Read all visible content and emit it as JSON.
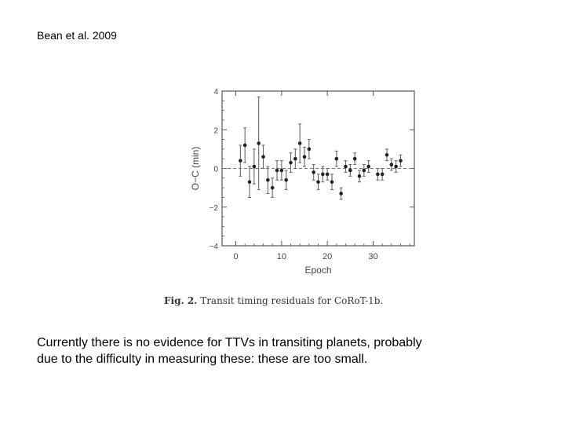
{
  "header": {
    "citation": "Bean et al. 2009"
  },
  "caption": {
    "label": "Fig. 2.",
    "text": "Transit timing residuals for CoRoT-1b."
  },
  "body": {
    "line1": "Currently there is no evidence for TTVs in transiting planets, probably",
    "line2": "due to the difficulty in measuring these: these are too small."
  },
  "chart_data": {
    "type": "scatter",
    "title": "",
    "xlabel": "Epoch",
    "ylabel": "O−C (min)",
    "xlim": [
      -3,
      39
    ],
    "ylim": [
      -4,
      4
    ],
    "xticks": [
      0,
      10,
      20,
      30
    ],
    "yticks": [
      -4,
      -2,
      0,
      2,
      4
    ],
    "ytick_labels": [
      "−4",
      "−2",
      "0",
      "2",
      "4"
    ],
    "zero_line": "dashed",
    "grid": false,
    "points": [
      {
        "x": 1,
        "y": 0.4,
        "err": 0.8
      },
      {
        "x": 2,
        "y": 1.2,
        "err": 0.9
      },
      {
        "x": 3,
        "y": -0.7,
        "err": 0.8
      },
      {
        "x": 4,
        "y": 0.1,
        "err": 0.9
      },
      {
        "x": 5,
        "y": 1.3,
        "err": 2.4
      },
      {
        "x": 6,
        "y": 0.6,
        "err": 0.6
      },
      {
        "x": 7,
        "y": -0.6,
        "err": 0.7
      },
      {
        "x": 8,
        "y": -1.0,
        "err": 0.5
      },
      {
        "x": 9,
        "y": -0.1,
        "err": 0.5
      },
      {
        "x": 10,
        "y": -0.1,
        "err": 0.5
      },
      {
        "x": 11,
        "y": -0.6,
        "err": 0.5
      },
      {
        "x": 12,
        "y": 0.3,
        "err": 0.5
      },
      {
        "x": 13,
        "y": 0.5,
        "err": 0.5
      },
      {
        "x": 14,
        "y": 1.3,
        "err": 1.0
      },
      {
        "x": 15,
        "y": 0.6,
        "err": 0.5
      },
      {
        "x": 16,
        "y": 1.0,
        "err": 0.5
      },
      {
        "x": 17,
        "y": -0.2,
        "err": 0.4
      },
      {
        "x": 18,
        "y": -0.7,
        "err": 0.4
      },
      {
        "x": 19,
        "y": -0.3,
        "err": 0.4
      },
      {
        "x": 20,
        "y": -0.3,
        "err": 0.3
      },
      {
        "x": 21,
        "y": -0.7,
        "err": 0.4
      },
      {
        "x": 22,
        "y": 0.5,
        "err": 0.4
      },
      {
        "x": 23,
        "y": -1.3,
        "err": 0.3
      },
      {
        "x": 24,
        "y": 0.1,
        "err": 0.3
      },
      {
        "x": 25,
        "y": -0.1,
        "err": 0.3
      },
      {
        "x": 26,
        "y": 0.5,
        "err": 0.3
      },
      {
        "x": 27,
        "y": -0.4,
        "err": 0.3
      },
      {
        "x": 28,
        "y": -0.1,
        "err": 0.3
      },
      {
        "x": 29,
        "y": 0.1,
        "err": 0.3
      },
      {
        "x": 31,
        "y": -0.3,
        "err": 0.3
      },
      {
        "x": 32,
        "y": -0.3,
        "err": 0.3
      },
      {
        "x": 33,
        "y": 0.7,
        "err": 0.3
      },
      {
        "x": 34,
        "y": 0.2,
        "err": 0.3
      },
      {
        "x": 35,
        "y": 0.1,
        "err": 0.3
      },
      {
        "x": 36,
        "y": 0.4,
        "err": 0.3
      }
    ],
    "colors": {
      "marker": "#222222",
      "errorbar": "#666666",
      "axes": "#555555",
      "zero_line": "#777777"
    }
  }
}
